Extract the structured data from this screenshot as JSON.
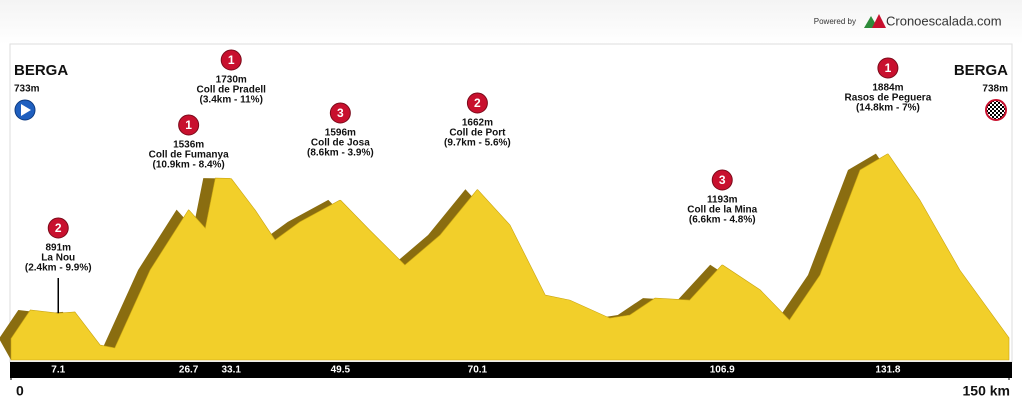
{
  "header": {
    "prefix": "Powered by",
    "brand": "Cronoescalada.com"
  },
  "chart_data": {
    "type": "area",
    "color": "#f2cf2a",
    "shadow_color": "#8a6d10",
    "xlim": [
      0,
      150
    ],
    "ylim": [
      600,
      2000
    ],
    "xticks": [
      0,
      {
        "value": 150,
        "label": "150 km"
      }
    ],
    "x": [
      0,
      2.9,
      7.1,
      9.6,
      13.4,
      15.6,
      20.9,
      26.7,
      29.2,
      30.7,
      33.1,
      36.7,
      39.7,
      43.4,
      49.5,
      53.9,
      59.2,
      64.5,
      70.1,
      75,
      80.3,
      84,
      90,
      93,
      96.8,
      102,
      106.9,
      112.6,
      117,
      121.6,
      127.6,
      131.8,
      136.6,
      142.6,
      150
    ],
    "values": [
      733,
      911,
      891,
      899,
      693,
      675,
      1160,
      1536,
      1421,
      1732,
      1730,
      1533,
      1347,
      1459,
      1596,
      1409,
      1191,
      1378,
      1662,
      1440,
      1004,
      973,
      861,
      880,
      985,
      973,
      1193,
      1036,
      849,
      1129,
      1782,
      1884,
      1596,
      1160,
      738
    ],
    "start": {
      "name": "BERGA",
      "elevation": 733,
      "elevation_label": "733m"
    },
    "finish": {
      "name": "BERGA",
      "elevation": 738,
      "elevation_label": "738m"
    },
    "climbs": [
      {
        "km": 7.1,
        "category": 2,
        "elevation": 891,
        "elevation_label": "891m",
        "name": "La Nou",
        "detail": "(2.4km - 9.9%)"
      },
      {
        "km": 26.7,
        "category": 1,
        "elevation": 1536,
        "elevation_label": "1536m",
        "name": "Coll de Fumanya",
        "detail": "(10.9km - 8.4%)"
      },
      {
        "km": 33.1,
        "category": 1,
        "elevation": 1730,
        "elevation_label": "1730m",
        "name": "Coll de Pradell",
        "detail": "(3.4km - 11%)"
      },
      {
        "km": 49.5,
        "category": 3,
        "elevation": 1596,
        "elevation_label": "1596m",
        "name": "Coll de Josa",
        "detail": "(8.6km - 3.9%)"
      },
      {
        "km": 70.1,
        "category": 2,
        "elevation": 1662,
        "elevation_label": "1662m",
        "name": "Coll de Port",
        "detail": "(9.7km - 5.6%)"
      },
      {
        "km": 106.9,
        "category": 3,
        "elevation": 1193,
        "elevation_label": "1193m",
        "name": "Coll de la Mina",
        "detail": "(6.6km - 4.8%)"
      },
      {
        "km": 131.8,
        "category": 1,
        "elevation": 1884,
        "elevation_label": "1884m",
        "name": "Rasos de Peguera",
        "detail": "(14.8km - 7%)"
      }
    ]
  }
}
